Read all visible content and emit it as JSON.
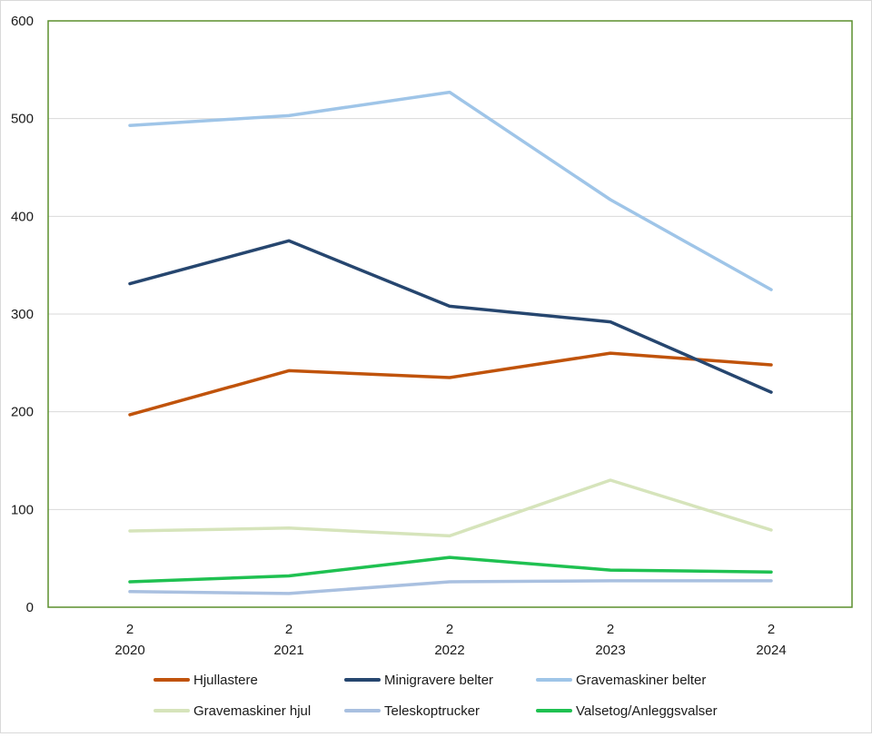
{
  "chart_data": {
    "type": "line",
    "title": "",
    "xlabel": "",
    "ylabel": "",
    "ylim": [
      0,
      600
    ],
    "yticks": [
      0,
      100,
      200,
      300,
      400,
      500,
      600
    ],
    "grid": true,
    "legend_position": "bottom",
    "categories": [
      {
        "top": "2",
        "bottom": "2020"
      },
      {
        "top": "2",
        "bottom": "2021"
      },
      {
        "top": "2",
        "bottom": "2022"
      },
      {
        "top": "2",
        "bottom": "2023"
      },
      {
        "top": "2",
        "bottom": "2024"
      }
    ],
    "series": [
      {
        "name": "Hjullastere",
        "color": "#c0530b",
        "values": [
          197,
          242,
          235,
          260,
          248
        ]
      },
      {
        "name": "Minigravere belter",
        "color": "#26466f",
        "values": [
          331,
          375,
          308,
          292,
          220
        ]
      },
      {
        "name": "Gravemaskiner belter",
        "color": "#9fc5e8",
        "values": [
          493,
          503,
          527,
          417,
          325
        ]
      },
      {
        "name": "Gravemaskiner hjul",
        "color": "#d6e4bb",
        "values": [
          78,
          81,
          73,
          130,
          79
        ]
      },
      {
        "name": "Teleskoptrucker",
        "color": "#a9c0e0",
        "values": [
          16,
          14,
          26,
          27,
          27
        ]
      },
      {
        "name": "Valsetog/Anleggsvalser",
        "color": "#1fc151",
        "values": [
          26,
          32,
          51,
          38,
          36
        ]
      }
    ]
  },
  "colors": {
    "plot_border": "#5b8f2d",
    "gridline": "#d9d9d9"
  }
}
